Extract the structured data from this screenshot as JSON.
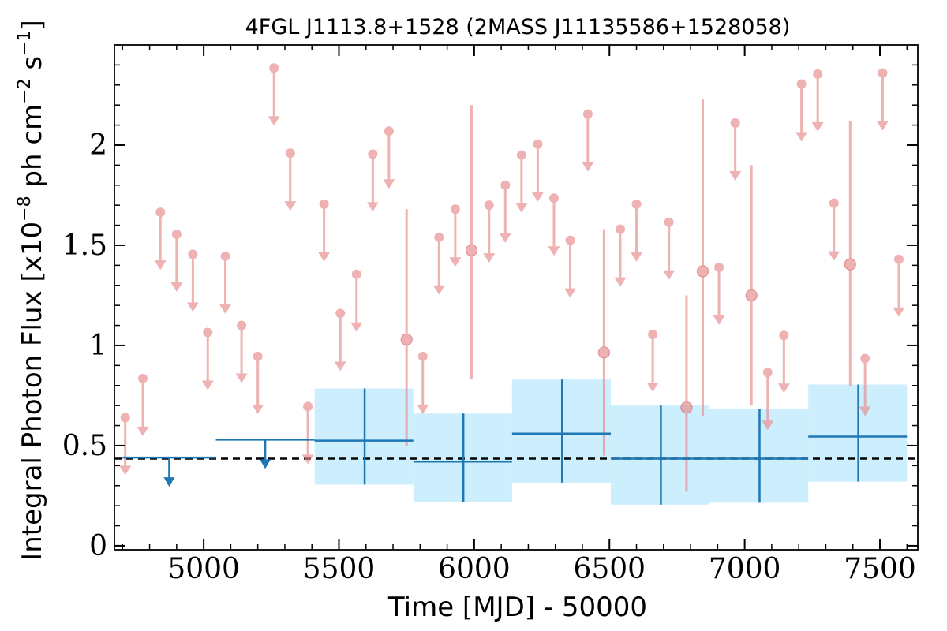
{
  "chart_data": {
    "type": "scatter",
    "title": "4FGL J1113.8+1528 (2MASS J11135586+1528058)",
    "xlabel": "Time [MJD] - 50000",
    "ylabel_parts": [
      "Integral Photon Flux [x10",
      "−8",
      " ph cm",
      "−2",
      " s",
      "−1",
      "]"
    ],
    "xlim": [
      4670,
      7640
    ],
    "ylim": [
      -0.02,
      2.5
    ],
    "xticks": [
      5000,
      5500,
      6000,
      6500,
      7000,
      7500
    ],
    "xtick_labels": [
      "5000",
      "5500",
      "6000",
      "6500",
      "7000",
      "7500"
    ],
    "yticks": [
      0,
      0.5,
      1,
      1.5,
      2
    ],
    "ytick_labels": [
      "0",
      "0.5",
      "1",
      "1.5",
      "2"
    ],
    "mean_flux": 0.435,
    "colors": {
      "short_bins": "#e8898c",
      "long_bins": "#1f77b4",
      "error_band": "#cdeefc",
      "mean_line": "#000000"
    },
    "short_bin_upper_limits": [
      {
        "x": 4710,
        "y": 0.64
      },
      {
        "x": 4775,
        "y": 0.835
      },
      {
        "x": 4840,
        "y": 1.665
      },
      {
        "x": 4900,
        "y": 1.555
      },
      {
        "x": 4960,
        "y": 1.455
      },
      {
        "x": 5015,
        "y": 1.065
      },
      {
        "x": 5080,
        "y": 1.445
      },
      {
        "x": 5140,
        "y": 1.1
      },
      {
        "x": 5200,
        "y": 0.945
      },
      {
        "x": 5260,
        "y": 2.385
      },
      {
        "x": 5320,
        "y": 1.96
      },
      {
        "x": 5385,
        "y": 0.695
      },
      {
        "x": 5445,
        "y": 1.705
      },
      {
        "x": 5505,
        "y": 1.16
      },
      {
        "x": 5565,
        "y": 1.355
      },
      {
        "x": 5625,
        "y": 1.955
      },
      {
        "x": 5685,
        "y": 2.07
      },
      {
        "x": 5810,
        "y": 0.945
      },
      {
        "x": 5870,
        "y": 1.54
      },
      {
        "x": 5930,
        "y": 1.68
      },
      {
        "x": 6055,
        "y": 1.7
      },
      {
        "x": 6115,
        "y": 1.8
      },
      {
        "x": 6175,
        "y": 1.95
      },
      {
        "x": 6235,
        "y": 2.005
      },
      {
        "x": 6295,
        "y": 1.735
      },
      {
        "x": 6355,
        "y": 1.525
      },
      {
        "x": 6420,
        "y": 2.155
      },
      {
        "x": 6540,
        "y": 1.58
      },
      {
        "x": 6600,
        "y": 1.705
      },
      {
        "x": 6660,
        "y": 1.055
      },
      {
        "x": 6720,
        "y": 1.615
      },
      {
        "x": 6905,
        "y": 1.39
      },
      {
        "x": 6965,
        "y": 2.11
      },
      {
        "x": 7085,
        "y": 0.865
      },
      {
        "x": 7145,
        "y": 1.05
      },
      {
        "x": 7210,
        "y": 2.305
      },
      {
        "x": 7270,
        "y": 2.355
      },
      {
        "x": 7330,
        "y": 1.71
      },
      {
        "x": 7445,
        "y": 0.935
      },
      {
        "x": 7510,
        "y": 2.36
      },
      {
        "x": 7570,
        "y": 1.43
      }
    ],
    "short_bin_detections": [
      {
        "x": 5750,
        "y": 1.03,
        "lo": 0.5,
        "hi": 1.68
      },
      {
        "x": 5990,
        "y": 1.475,
        "lo": 0.83,
        "hi": 2.2
      },
      {
        "x": 6480,
        "y": 0.965,
        "lo": 0.45,
        "hi": 1.58
      },
      {
        "x": 6785,
        "y": 0.69,
        "lo": 0.27,
        "hi": 1.25
      },
      {
        "x": 6845,
        "y": 1.37,
        "lo": 0.65,
        "hi": 2.23
      },
      {
        "x": 7025,
        "y": 1.25,
        "lo": 0.7,
        "hi": 1.9
      },
      {
        "x": 7390,
        "y": 1.405,
        "lo": 0.8,
        "hi": 2.12
      }
    ],
    "long_bin_upper_limits": [
      {
        "x0": 4700,
        "x1": 5045,
        "y": 0.44
      },
      {
        "x0": 5045,
        "x1": 5410,
        "y": 0.53
      }
    ],
    "long_bin_detections": [
      {
        "x0": 5410,
        "x1": 5775,
        "x": 5595,
        "y": 0.525,
        "lo": 0.305,
        "hi": 0.785
      },
      {
        "x0": 5775,
        "x1": 6140,
        "x": 5960,
        "y": 0.42,
        "lo": 0.22,
        "hi": 0.66
      },
      {
        "x0": 6140,
        "x1": 6505,
        "x": 6325,
        "y": 0.56,
        "lo": 0.315,
        "hi": 0.83
      },
      {
        "x0": 6505,
        "x1": 6870,
        "x": 6690,
        "y": 0.435,
        "lo": 0.205,
        "hi": 0.7
      },
      {
        "x0": 6870,
        "x1": 7235,
        "x": 7055,
        "y": 0.435,
        "lo": 0.215,
        "hi": 0.685
      },
      {
        "x0": 7235,
        "x1": 7600,
        "x": 7420,
        "y": 0.545,
        "lo": 0.32,
        "hi": 0.805
      }
    ]
  }
}
